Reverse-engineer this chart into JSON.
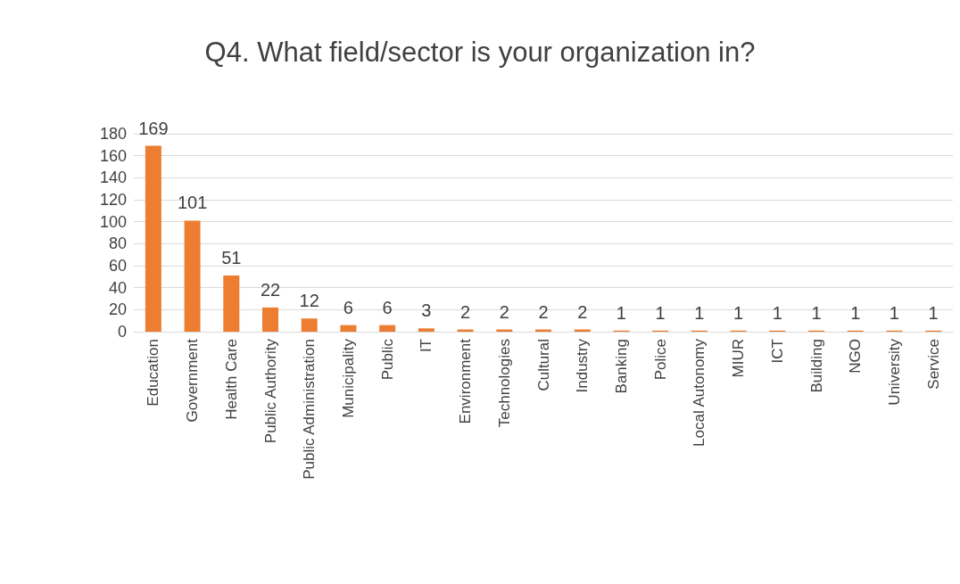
{
  "chart_data": {
    "type": "bar",
    "title": "Q4. What field/sector is your organization in?",
    "categories": [
      "Education",
      "Government",
      "Health Care",
      "Public Authority",
      "Public Administration",
      "Municipality",
      "Public",
      "IT",
      "Environment",
      "Technologies",
      "Cultural",
      "Industry",
      "Banking",
      "Police",
      "Local Autonomy",
      "MIUR",
      "ICT",
      "Building",
      "NGO",
      "University",
      "Service"
    ],
    "values": [
      169,
      101,
      51,
      22,
      12,
      6,
      6,
      3,
      2,
      2,
      2,
      2,
      1,
      1,
      1,
      1,
      1,
      1,
      1,
      1,
      1
    ],
    "color": "#ed7d31",
    "ylim": [
      0,
      180
    ],
    "yticks": [
      0,
      20,
      40,
      60,
      80,
      100,
      120,
      140,
      160,
      180
    ],
    "grid": "y",
    "data_labels": true
  }
}
